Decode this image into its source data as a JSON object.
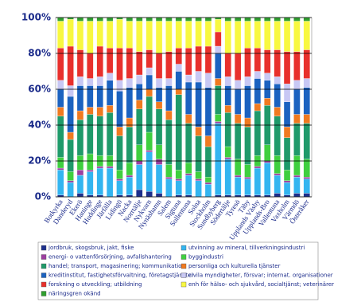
{
  "chart_data": {
    "type": "stacked_bar",
    "categories": [
      "Botkyrka",
      "Danderyd",
      "Ekerö",
      "Haninge",
      "Huddinge",
      "Järfälla",
      "Lidingö",
      "Nacka",
      "Norrtälje",
      "Nykvarn",
      "Nynäshamn",
      "Salem",
      "Sigtuna",
      "Sollentuna",
      "Solna",
      "Stockholm",
      "Sundbyberg",
      "Södertälje",
      "Tyresö",
      "Täby",
      "Upplands Väsby",
      "Upplands-Bro",
      "Vallentuna",
      "Vaxholm",
      "Värmdö",
      "Österåker"
    ],
    "series": [
      {
        "name": "jordbruk, skogsbruk, jakt, fiske",
        "color": "#1c2f8c",
        "values": [
          1,
          0,
          2,
          1,
          1,
          0,
          1,
          1,
          4,
          3,
          2,
          0,
          1,
          1,
          0,
          0,
          1,
          1,
          1,
          1,
          1,
          1,
          2,
          1,
          2,
          2
        ]
      },
      {
        "name": "utvinning av mineral, tillverkningsindustri",
        "color": "#33b5f0",
        "values": [
          14,
          8,
          10,
          13,
          15,
          16,
          8,
          10,
          14,
          22,
          16,
          10,
          8,
          11,
          9,
          7,
          40,
          20,
          10,
          9,
          15,
          18,
          10,
          7,
          9,
          8
        ]
      },
      {
        "name": "energi- o vattenförsörjning, avfallshantering",
        "color": "#9c3fa0",
        "values": [
          1,
          1,
          3,
          1,
          1,
          1,
          1,
          1,
          2,
          1,
          3,
          1,
          1,
          1,
          1,
          1,
          1,
          1,
          1,
          1,
          1,
          1,
          1,
          1,
          1,
          1
        ]
      },
      {
        "name": "byggindustri",
        "color": "#3fcf3f",
        "values": [
          6,
          5,
          8,
          9,
          6,
          6,
          5,
          7,
          9,
          10,
          8,
          7,
          5,
          6,
          4,
          3,
          4,
          6,
          9,
          7,
          6,
          9,
          10,
          6,
          11,
          10
        ]
      },
      {
        "name": "handel; transport, magasinering; kommunikation",
        "color": "#1f9a6a",
        "values": [
          23,
          18,
          20,
          22,
          22,
          24,
          19,
          20,
          20,
          20,
          20,
          25,
          42,
          22,
          20,
          17,
          16,
          19,
          20,
          21,
          25,
          22,
          22,
          18,
          18,
          20
        ]
      },
      {
        "name": "personliga och kulturella tjänster",
        "color": "#f07a20",
        "values": [
          5,
          4,
          5,
          4,
          5,
          4,
          5,
          5,
          5,
          4,
          4,
          5,
          3,
          5,
          5,
          6,
          4,
          4,
          5,
          5,
          4,
          4,
          5,
          6,
          5,
          5
        ]
      },
      {
        "name": "kreditinstitut, fastighetsförvaltning, företagstjänster",
        "color": "#1b62c0",
        "values": [
          10,
          20,
          14,
          12,
          12,
          14,
          20,
          17,
          9,
          8,
          8,
          14,
          10,
          18,
          25,
          27,
          14,
          11,
          14,
          18,
          14,
          10,
          13,
          14,
          14,
          15
        ]
      },
      {
        "name": "civila myndigheter, försvar; internat. organisationer",
        "color": "#c8c8f4",
        "values": [
          5,
          6,
          5,
          4,
          5,
          4,
          6,
          5,
          5,
          4,
          5,
          4,
          4,
          4,
          6,
          8,
          4,
          5,
          5,
          5,
          4,
          4,
          4,
          10,
          5,
          5
        ]
      },
      {
        "name": "forskning o utveckling; utbildning",
        "color": "#e8302c",
        "values": [
          18,
          22,
          15,
          14,
          17,
          14,
          18,
          17,
          13,
          10,
          14,
          15,
          9,
          15,
          14,
          15,
          8,
          13,
          15,
          16,
          13,
          13,
          15,
          18,
          16,
          16
        ]
      },
      {
        "name": "enh för hälso- och sjukvård, socialtjänst; veterinärer",
        "color": "#f8f840",
        "values": [
          15,
          15,
          16,
          18,
          14,
          15,
          16,
          15,
          17,
          16,
          18,
          17,
          15,
          15,
          14,
          14,
          7,
          18,
          18,
          15,
          15,
          16,
          16,
          17,
          17,
          16
        ]
      },
      {
        "name": "näringsgren okänd",
        "color": "#30a030",
        "values": [
          2,
          1,
          2,
          2,
          2,
          2,
          1,
          2,
          2,
          2,
          2,
          2,
          2,
          2,
          2,
          2,
          1,
          2,
          2,
          2,
          2,
          2,
          2,
          2,
          2,
          2
        ]
      }
    ],
    "ylim": [
      0,
      100
    ],
    "yticks": [
      {
        "value": 0,
        "label": "0%"
      },
      {
        "value": 20,
        "label": "20%"
      },
      {
        "value": 40,
        "label": "40%"
      },
      {
        "value": 60,
        "label": "60%"
      },
      {
        "value": 80,
        "label": "80%"
      },
      {
        "value": 100,
        "label": "100%"
      }
    ],
    "grid": true
  }
}
